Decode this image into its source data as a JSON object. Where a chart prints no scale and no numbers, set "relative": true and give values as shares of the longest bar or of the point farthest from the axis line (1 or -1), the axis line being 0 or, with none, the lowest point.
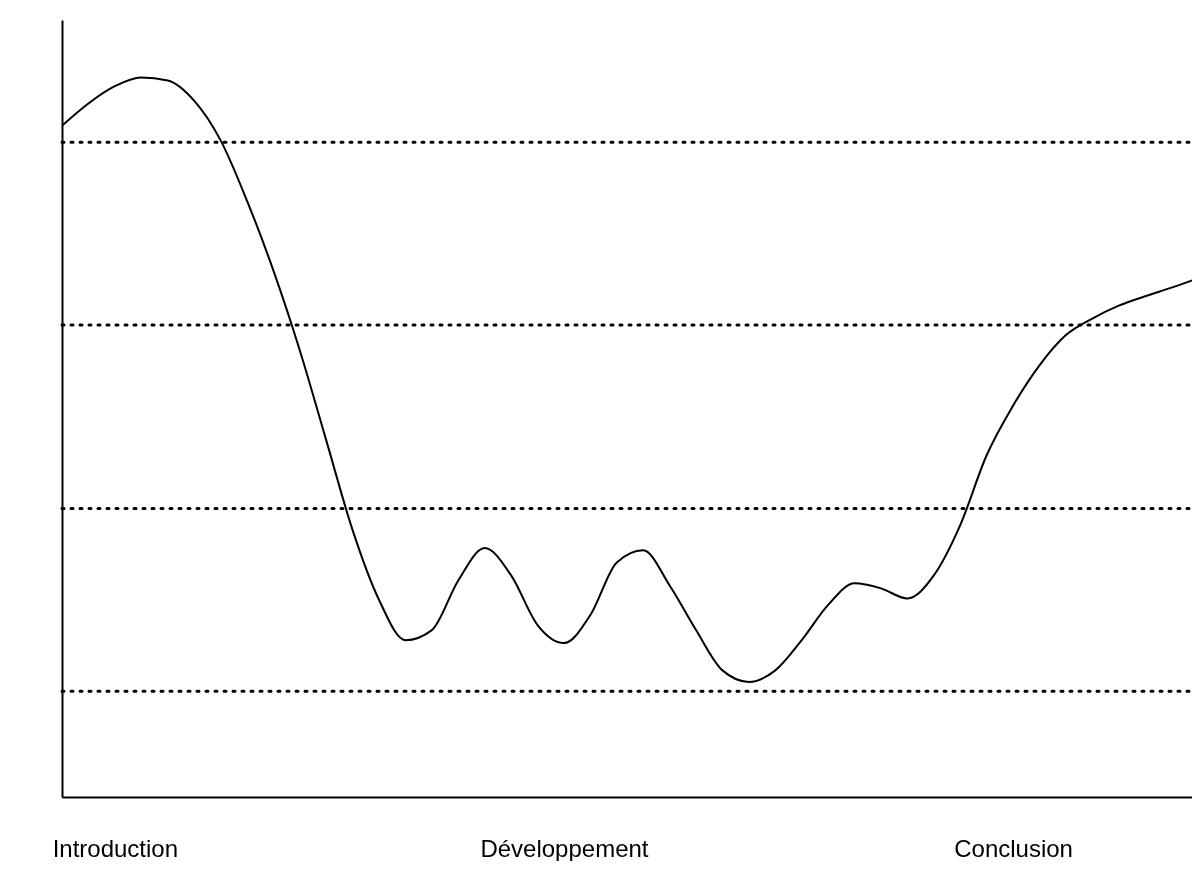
{
  "chart_data": {
    "type": "line",
    "relative": true,
    "categories": [
      null,
      null,
      "Introduction",
      null,
      null,
      null,
      null,
      null,
      null,
      null,
      null,
      null,
      null,
      null,
      null,
      null,
      null,
      null,
      null,
      "Développement",
      null,
      null,
      null,
      null,
      null,
      null,
      null,
      null,
      null,
      null,
      null,
      null,
      null,
      null,
      null,
      null,
      "Conclusion",
      null,
      null,
      null,
      null,
      null,
      null,
      null
    ],
    "series": [
      {
        "color": "#000000",
        "values": [
          0.933,
          0.964,
          0.988,
          1,
          0.996,
          0.968,
          0.913,
          0.829,
          0.732,
          0.621,
          0.496,
          0.371,
          0.274,
          0.218,
          0.232,
          0.301,
          0.346,
          0.308,
          0.239,
          0.214,
          0.253,
          0.326,
          0.343,
          0.294,
          0.232,
          0.176,
          0.16,
          0.176,
          0.218,
          0.267,
          0.297,
          0.29,
          0.276,
          0.308,
          0.378,
          0.475,
          0.544,
          0.6,
          0.642,
          0.665,
          0.683,
          0.696,
          0.708,
          0.721
        ]
      }
    ],
    "ref_lines": [
      {
        "axis": "y",
        "value": 0.91,
        "color": "#000000",
        "line_style": "dotted"
      },
      {
        "axis": "y",
        "value": 0.656,
        "color": "#000000",
        "line_style": "dotted"
      },
      {
        "axis": "y",
        "value": 0.401,
        "color": "#000000",
        "line_style": "dotted"
      },
      {
        "axis": "y",
        "value": 0.147,
        "color": "#000000",
        "line_style": "dotted"
      }
    ]
  }
}
